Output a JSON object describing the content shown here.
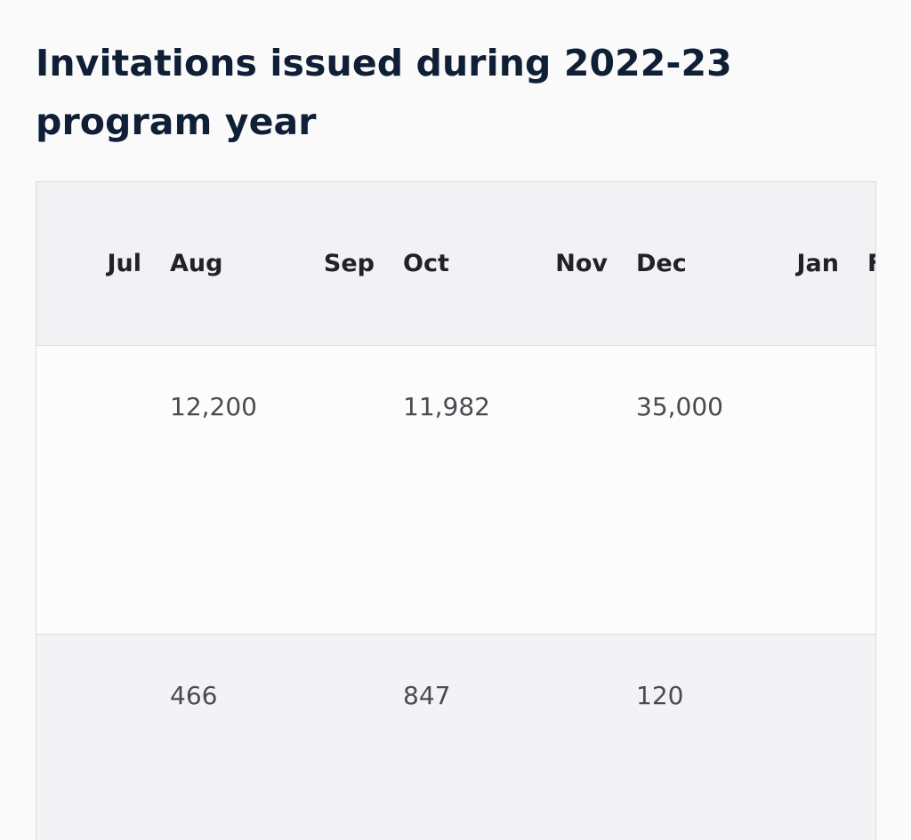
{
  "page": {
    "title": "Invitations issued during 2022-23 program year"
  },
  "table": {
    "columns": [
      "Jul",
      "Aug",
      "Sep",
      "Oct",
      "Nov",
      "Dec",
      "Jan",
      "F"
    ],
    "rows": [
      [
        "",
        "12,200",
        "",
        "11,982",
        "",
        "35,000",
        "",
        ""
      ],
      [
        "",
        "466",
        "",
        "847",
        "",
        "120",
        "",
        ""
      ]
    ]
  }
}
